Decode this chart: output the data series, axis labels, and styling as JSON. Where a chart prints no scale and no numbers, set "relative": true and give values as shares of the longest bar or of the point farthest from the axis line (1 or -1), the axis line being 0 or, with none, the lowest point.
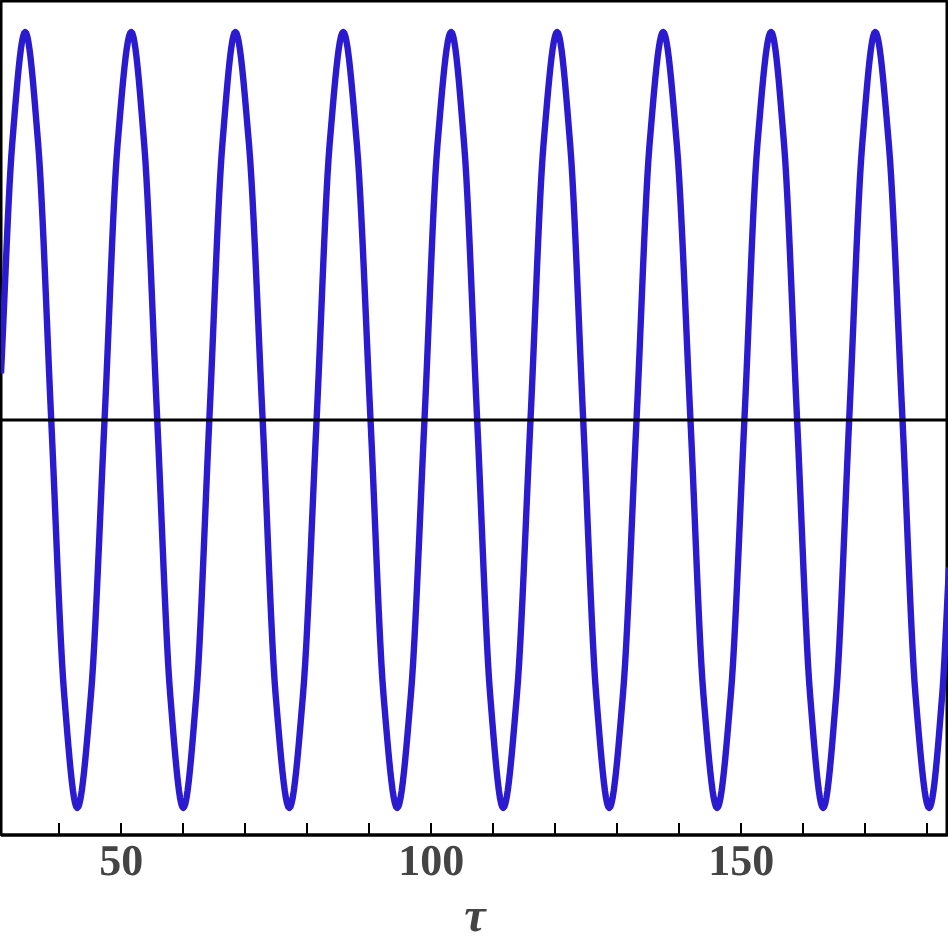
{
  "chart_data": {
    "type": "line",
    "xlabel": "τ",
    "relative": true,
    "grid": false,
    "marker": "none",
    "line_style": "solid",
    "xlim": [
      30.6,
      183.5
    ],
    "xticks": [
      {
        "value": 40,
        "label": null
      },
      50,
      {
        "value": 60,
        "label": null
      },
      {
        "value": 70,
        "label": null
      },
      {
        "value": 80,
        "label": null
      },
      {
        "value": 90,
        "label": null
      },
      100,
      {
        "value": 110,
        "label": null
      },
      {
        "value": 120,
        "label": null
      },
      {
        "value": 130,
        "label": null
      },
      {
        "value": 140,
        "label": null
      },
      150,
      {
        "value": 160,
        "label": null
      },
      {
        "value": 170,
        "label": null
      },
      {
        "value": 180,
        "label": null
      }
    ],
    "series": [
      {
        "color": "#2b1bd0",
        "x": [
          30.6,
          32.4,
          34.5,
          36.6,
          38.7,
          40.8,
          42.9,
          45.1,
          47.3,
          49.4,
          51.6,
          53.7,
          55.8,
          57.9,
          60.0,
          62.1,
          64.2,
          66.3,
          68.4,
          70.6,
          72.8,
          74.9,
          77.1,
          79.3,
          81.5,
          83.6,
          85.8,
          88.0,
          90.2,
          92.3,
          94.5,
          96.7,
          98.9,
          101.0,
          103.2,
          105.3,
          107.4,
          109.5,
          111.6,
          113.8,
          116.0,
          118.1,
          120.3,
          122.4,
          124.5,
          126.6,
          128.7,
          130.9,
          133.1,
          135.2,
          137.4,
          139.6,
          141.8,
          143.9,
          146.1,
          148.3,
          150.5,
          152.6,
          154.8,
          156.9,
          159.0,
          161.1,
          163.2,
          165.3,
          167.4,
          169.5,
          171.6,
          173.8,
          176.0,
          178.1,
          180.3,
          182.4,
          183.5
        ],
        "values": [
          0.12,
          0.71,
          1,
          0.71,
          0,
          -0.71,
          -1,
          -0.71,
          0,
          0.71,
          1,
          0.71,
          0,
          -0.71,
          -1,
          -0.71,
          0,
          0.71,
          1,
          0.71,
          0,
          -0.71,
          -1,
          -0.71,
          0,
          0.71,
          1,
          0.71,
          0,
          -0.71,
          -1,
          -0.71,
          0,
          0.71,
          1,
          0.71,
          0,
          -0.71,
          -1,
          -0.71,
          0,
          0.71,
          1,
          0.71,
          0,
          -0.71,
          -1,
          -0.71,
          0,
          0.71,
          1,
          0.71,
          0,
          -0.71,
          -1,
          -0.71,
          0,
          0.71,
          1,
          0.71,
          0,
          -0.71,
          -1,
          -0.71,
          0,
          0.71,
          1,
          0.71,
          0,
          -0.71,
          -1,
          -0.71,
          -0.38
        ]
      }
    ]
  }
}
